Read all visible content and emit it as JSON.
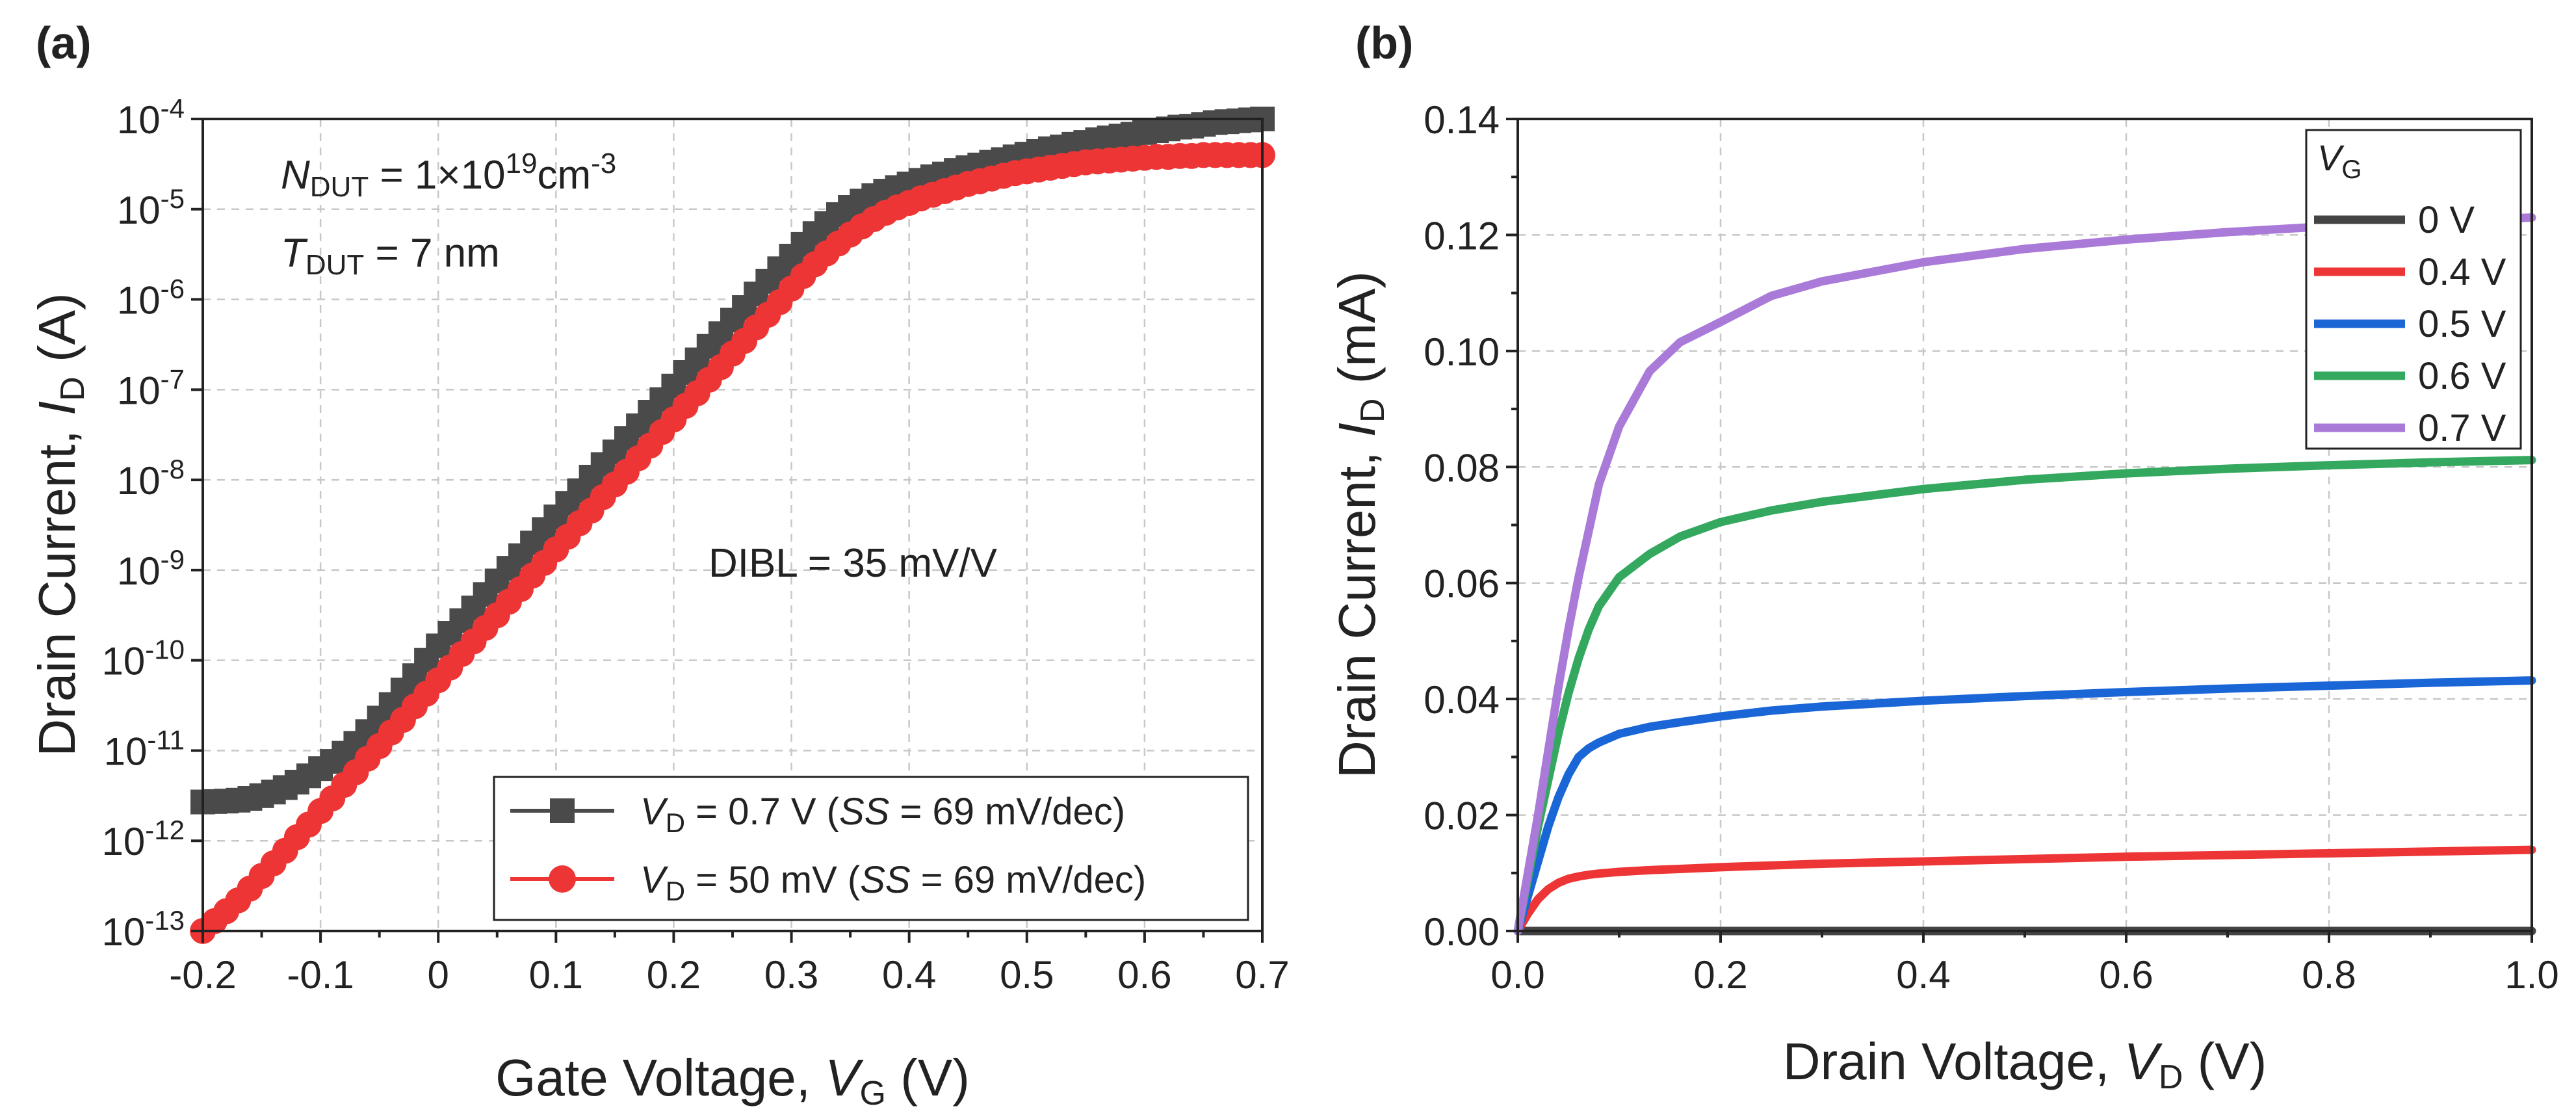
{
  "chart_data": [
    {
      "panel": "(a)",
      "type": "scatter",
      "xscale": "linear",
      "yscale": "log",
      "xlim": [
        -0.2,
        0.7
      ],
      "ylim_exp": [
        -13,
        -4
      ],
      "x_ticks": [
        "-0.2",
        "-0.1",
        "0",
        "0.1",
        "0.2",
        "0.3",
        "0.4",
        "0.5",
        "0.6",
        "0.7"
      ],
      "x_tick_values": [
        -0.2,
        -0.1,
        0,
        0.1,
        0.2,
        0.3,
        0.4,
        0.5,
        0.6,
        0.7
      ],
      "y_tick_base": "10",
      "y_tick_exponents": [
        "-13",
        "-12",
        "-11",
        "-10",
        "-9",
        "-8",
        "-7",
        "-6",
        "-5",
        "-4"
      ],
      "xlabel": {
        "prefix": "Gate Voltage, ",
        "var": "V",
        "sub": "G",
        "suffix": " (V)"
      },
      "ylabel": {
        "prefix": "Drain Current, ",
        "var": "I",
        "sub": "D",
        "suffix": " (A)"
      },
      "annotations": {
        "ndut": {
          "var": "N",
          "sub": "DUT",
          "mid": " = 1×10",
          "sup": "19",
          "unit": "cm",
          "unit_sup": "-3"
        },
        "tdut": {
          "var": "T",
          "sub": "DUT",
          "rest": " = 7 nm"
        },
        "dibl": "DIBL = 35 mV/V"
      },
      "legend": [
        {
          "var": "V",
          "sub": "D",
          "text1": " = 0.7 V (",
          "ital": "SS",
          "text2": " = 69 mV/dec)"
        },
        {
          "var": "V",
          "sub": "D",
          "text1": " = 50 mV (",
          "ital": "SS",
          "text2": " = 69 mV/dec)"
        }
      ],
      "series": [
        {
          "name": "VD = 0.7 V (SS = 69 mV/dec)",
          "color": "#4a4a4a",
          "marker": "square",
          "x": [
            -0.2,
            -0.19,
            -0.18,
            -0.17,
            -0.16,
            -0.15,
            -0.14,
            -0.13,
            -0.12,
            -0.11,
            -0.1,
            -0.09,
            -0.08,
            -0.07,
            -0.06,
            -0.05,
            -0.04,
            -0.03,
            -0.02,
            -0.01,
            0,
            0.01,
            0.02,
            0.03,
            0.04,
            0.05,
            0.06,
            0.07,
            0.08,
            0.09,
            0.1,
            0.11,
            0.12,
            0.13,
            0.14,
            0.15,
            0.16,
            0.17,
            0.18,
            0.19,
            0.2,
            0.21,
            0.22,
            0.23,
            0.24,
            0.25,
            0.26,
            0.27,
            0.28,
            0.29,
            0.3,
            0.31,
            0.32,
            0.33,
            0.34,
            0.35,
            0.36,
            0.37,
            0.38,
            0.39,
            0.4,
            0.41,
            0.42,
            0.43,
            0.44,
            0.45,
            0.46,
            0.47,
            0.48,
            0.49,
            0.5,
            0.51,
            0.52,
            0.53,
            0.54,
            0.55,
            0.56,
            0.57,
            0.58,
            0.59,
            0.6,
            0.61,
            0.62,
            0.63,
            0.64,
            0.65,
            0.66,
            0.67,
            0.68,
            0.69,
            0.7
          ],
          "y_log10": [
            -11.57,
            -11.565,
            -11.56,
            -11.55,
            -11.53,
            -11.5,
            -11.46,
            -11.41,
            -11.35,
            -11.28,
            -11.2,
            -11.12,
            -11.03,
            -10.92,
            -10.79,
            -10.64,
            -10.49,
            -10.33,
            -10.17,
            -10,
            -9.84,
            -9.7,
            -9.56,
            -9.42,
            -9.27,
            -9.12,
            -8.98,
            -8.84,
            -8.7,
            -8.55,
            -8.41,
            -8.26,
            -8.12,
            -7.97,
            -7.83,
            -7.69,
            -7.54,
            -7.4,
            -7.25,
            -7.11,
            -6.96,
            -6.81,
            -6.67,
            -6.52,
            -6.38,
            -6.23,
            -6.09,
            -5.94,
            -5.8,
            -5.66,
            -5.52,
            -5.39,
            -5.27,
            -5.16,
            -5.06,
            -4.98,
            -4.91,
            -4.85,
            -4.8,
            -4.76,
            -4.72,
            -4.68,
            -4.64,
            -4.61,
            -4.57,
            -4.54,
            -4.51,
            -4.48,
            -4.45,
            -4.42,
            -4.39,
            -4.36,
            -4.33,
            -4.31,
            -4.28,
            -4.26,
            -4.23,
            -4.21,
            -4.19,
            -4.17,
            -4.15,
            -4.13,
            -4.11,
            -4.09,
            -4.08,
            -4.06,
            -4.04,
            -4.03,
            -4.02,
            -4.01,
            -4
          ]
        },
        {
          "name": "VD = 50 mV (SS = 69 mV/dec)",
          "color": "#ee3535",
          "marker": "circle",
          "x": [
            -0.2,
            -0.19,
            -0.18,
            -0.17,
            -0.16,
            -0.15,
            -0.14,
            -0.13,
            -0.12,
            -0.11,
            -0.1,
            -0.09,
            -0.08,
            -0.07,
            -0.06,
            -0.05,
            -0.04,
            -0.03,
            -0.02,
            -0.01,
            0,
            0.01,
            0.02,
            0.03,
            0.04,
            0.05,
            0.06,
            0.07,
            0.08,
            0.09,
            0.1,
            0.11,
            0.12,
            0.13,
            0.14,
            0.15,
            0.16,
            0.17,
            0.18,
            0.19,
            0.2,
            0.21,
            0.22,
            0.23,
            0.24,
            0.25,
            0.26,
            0.27,
            0.28,
            0.29,
            0.3,
            0.31,
            0.32,
            0.33,
            0.34,
            0.35,
            0.36,
            0.37,
            0.38,
            0.39,
            0.4,
            0.41,
            0.42,
            0.43,
            0.44,
            0.45,
            0.46,
            0.47,
            0.48,
            0.49,
            0.5,
            0.51,
            0.52,
            0.53,
            0.54,
            0.55,
            0.56,
            0.57,
            0.58,
            0.59,
            0.6,
            0.61,
            0.62,
            0.63,
            0.64,
            0.65,
            0.66,
            0.67,
            0.68,
            0.69,
            0.7
          ],
          "y_log10": [
            -13,
            -12.89,
            -12.78,
            -12.66,
            -12.53,
            -12.39,
            -12.25,
            -12.11,
            -11.96,
            -11.82,
            -11.67,
            -11.53,
            -11.38,
            -11.24,
            -11.09,
            -10.95,
            -10.8,
            -10.66,
            -10.51,
            -10.37,
            -10.22,
            -10.08,
            -9.93,
            -9.79,
            -9.64,
            -9.5,
            -9.35,
            -9.21,
            -9.06,
            -8.92,
            -8.77,
            -8.63,
            -8.48,
            -8.34,
            -8.19,
            -8.05,
            -7.91,
            -7.76,
            -7.62,
            -7.47,
            -7.33,
            -7.18,
            -7.04,
            -6.89,
            -6.75,
            -6.6,
            -6.46,
            -6.31,
            -6.17,
            -6.03,
            -5.88,
            -5.74,
            -5.61,
            -5.49,
            -5.38,
            -5.28,
            -5.19,
            -5.11,
            -5.04,
            -4.98,
            -4.93,
            -4.88,
            -4.84,
            -4.8,
            -4.76,
            -4.72,
            -4.69,
            -4.66,
            -4.63,
            -4.6,
            -4.58,
            -4.56,
            -4.54,
            -4.52,
            -4.5,
            -4.48,
            -4.47,
            -4.46,
            -4.45,
            -4.44,
            -4.43,
            -4.42,
            -4.42,
            -4.41,
            -4.41,
            -4.4,
            -4.4,
            -4.4,
            -4.4,
            -4.4,
            -4.4
          ]
        }
      ]
    },
    {
      "panel": "(b)",
      "type": "line",
      "xlim": [
        0,
        1.0
      ],
      "ylim": [
        0,
        0.14
      ],
      "x_ticks": [
        "0.0",
        "0.2",
        "0.4",
        "0.6",
        "0.8",
        "1.0"
      ],
      "x_tick_values": [
        0,
        0.2,
        0.4,
        0.6,
        0.8,
        1.0
      ],
      "y_ticks": [
        "0.00",
        "0.02",
        "0.04",
        "0.06",
        "0.08",
        "0.10",
        "0.12",
        "0.14"
      ],
      "y_tick_values": [
        0,
        0.02,
        0.04,
        0.06,
        0.08,
        0.1,
        0.12,
        0.14
      ],
      "xlabel": {
        "prefix": "Drain Voltage, ",
        "var": "V",
        "sub": "D",
        "suffix": " (V)"
      },
      "ylabel": {
        "prefix": "Drain Current, ",
        "var": "I",
        "sub": "D",
        "suffix": " (mA)"
      },
      "legend_title": {
        "var": "V",
        "sub": "G"
      },
      "x": [
        0,
        0.01,
        0.02,
        0.03,
        0.04,
        0.05,
        0.06,
        0.07,
        0.08,
        0.1,
        0.13,
        0.16,
        0.2,
        0.25,
        0.3,
        0.4,
        0.5,
        0.6,
        0.7,
        0.8,
        0.9,
        1.0
      ],
      "series": [
        {
          "name": "0 V",
          "color": "#444444",
          "values": [
            0,
            0,
            0,
            0,
            0,
            0,
            0,
            0,
            0,
            0,
            0,
            0,
            0,
            0,
            0,
            0,
            0,
            0,
            0,
            0,
            0,
            0
          ]
        },
        {
          "name": "0.4 V",
          "color": "#ee3535",
          "values": [
            0,
            0.003,
            0.0055,
            0.0072,
            0.0083,
            0.009,
            0.0094,
            0.0097,
            0.0099,
            0.0102,
            0.0105,
            0.0107,
            0.011,
            0.0113,
            0.0116,
            0.012,
            0.0124,
            0.0128,
            0.0131,
            0.0134,
            0.0137,
            0.014
          ]
        },
        {
          "name": "0.5 V",
          "color": "#1a66d6",
          "values": [
            0,
            0.006,
            0.012,
            0.018,
            0.023,
            0.027,
            0.03,
            0.0315,
            0.0325,
            0.034,
            0.0352,
            0.036,
            0.037,
            0.038,
            0.0387,
            0.0397,
            0.0405,
            0.0412,
            0.0418,
            0.0423,
            0.0428,
            0.0432
          ]
        },
        {
          "name": "0.6 V",
          "color": "#33a85e",
          "values": [
            0,
            0.009,
            0.018,
            0.026,
            0.034,
            0.041,
            0.047,
            0.052,
            0.056,
            0.061,
            0.065,
            0.068,
            0.0705,
            0.0725,
            0.074,
            0.0762,
            0.0778,
            0.0789,
            0.0797,
            0.0803,
            0.0808,
            0.0812
          ]
        },
        {
          "name": "0.7 V",
          "color": "#a97ad8",
          "values": [
            0,
            0.01,
            0.02,
            0.031,
            0.042,
            0.052,
            0.061,
            0.069,
            0.077,
            0.087,
            0.0965,
            0.1015,
            0.105,
            0.1095,
            0.112,
            0.1153,
            0.1176,
            0.1192,
            0.1205,
            0.1215,
            0.1223,
            0.123
          ]
        }
      ]
    }
  ]
}
